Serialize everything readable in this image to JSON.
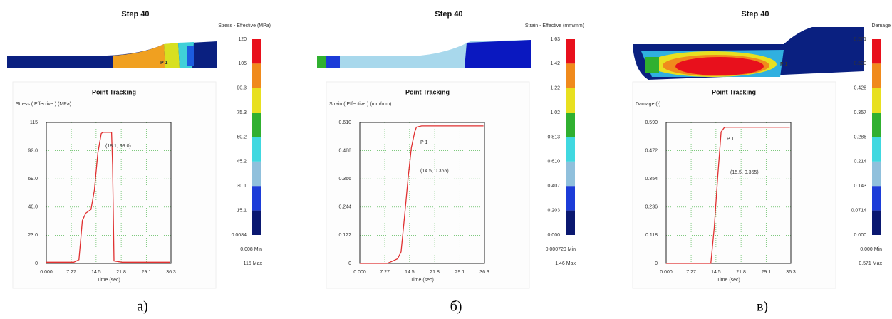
{
  "chart_data": [
    {
      "type": "line",
      "step_label": "Step  40",
      "legend_title": "Stress - Effective (MPa)",
      "node_label": "P 1",
      "colorbar_labels": [
        "120",
        "105",
        "90.3",
        "75.3",
        "60.2",
        "45.2",
        "30.1",
        "15.1",
        "0.0084"
      ],
      "min_label": "0.008  Min",
      "max_label": "115  Max",
      "title": "Point Tracking",
      "y_label": "Stress ( Effective ) (MPa)",
      "x_label": "Time (sec)",
      "annotations": [
        "(18.1, 99.0)"
      ],
      "x": [
        0,
        8,
        9.5,
        10.5,
        11.5,
        13,
        14,
        15,
        16,
        16.5,
        19,
        19.3,
        19.7,
        22,
        30,
        36
      ],
      "values": [
        1,
        1,
        3,
        35,
        41,
        44,
        60,
        90,
        106,
        107,
        107,
        80,
        2,
        1,
        1,
        1
      ],
      "color": "#e03030",
      "xlim": [
        0,
        36.3
      ],
      "xticks": [
        {
          "value": 0,
          "label": "0.000"
        },
        7.27,
        14.5,
        21.8,
        29.1,
        36.3
      ],
      "ylim": [
        0,
        115
      ],
      "yticks": [
        0,
        {
          "value": 23,
          "label": "23.0"
        },
        {
          "value": 46,
          "label": "46.0"
        },
        {
          "value": 69,
          "label": "69.0"
        },
        {
          "value": 92,
          "label": "92.0"
        },
        115
      ],
      "grid": true,
      "caption": "а)"
    },
    {
      "type": "line",
      "step_label": "Step  40",
      "legend_title": "Strain - Effective (mm/mm)",
      "node_label": "P 1",
      "colorbar_labels": [
        "1.63",
        "1.42",
        "1.22",
        "1.02",
        "0.813",
        "0.610",
        "0.407",
        "0.203",
        "0.000"
      ],
      "min_label": "0.000720  Min",
      "max_label": "1.46  Max",
      "title": "Point Tracking",
      "y_label": "Strain ( Effective ) (mm/mm)",
      "x_label": "Time (sec)",
      "annotations": [
        "P 1",
        "(14.5, 0.365)"
      ],
      "x": [
        0,
        8,
        9.5,
        11,
        12,
        13,
        14,
        15,
        16,
        16.5,
        18,
        25,
        30,
        36
      ],
      "values": [
        0,
        0,
        0.01,
        0.02,
        0.05,
        0.2,
        0.36,
        0.5,
        0.57,
        0.59,
        0.595,
        0.595,
        0.595,
        0.595
      ],
      "color": "#e03030",
      "xlim": [
        0,
        36.3
      ],
      "xticks": [
        {
          "value": 0,
          "label": "0.000"
        },
        7.27,
        14.5,
        21.8,
        29.1,
        36.3
      ],
      "ylim": [
        0,
        0.61
      ],
      "yticks": [
        0,
        0.122,
        0.244,
        0.366,
        0.488,
        {
          "value": 0.61,
          "label": "0.610"
        }
      ],
      "grid": true,
      "caption": "б)"
    },
    {
      "type": "line",
      "step_label": "Step  40",
      "legend_title": "Damage",
      "node_label": "P 1",
      "colorbar_labels": [
        "0.571",
        "0.500",
        "0.428",
        "0.357",
        "0.286",
        "0.214",
        "0.143",
        "0.0714",
        "0.000"
      ],
      "min_label": "0.000  Min",
      "max_label": "0.571  Max",
      "title": "Point Tracking",
      "y_label": "Damage (-)",
      "x_label": "Time (sec)",
      "annotations": [
        "P 1",
        "(15.5, 0.355)"
      ],
      "x": [
        0,
        13,
        14,
        15,
        16,
        17,
        36
      ],
      "values": [
        0,
        0,
        0.15,
        0.36,
        0.55,
        0.57,
        0.57
      ],
      "color": "#e03030",
      "xlim": [
        0,
        36.3
      ],
      "xticks": [
        {
          "value": 0,
          "label": "0.000"
        },
        7.27,
        14.5,
        21.8,
        29.1,
        36.3
      ],
      "ylim": [
        0,
        0.59
      ],
      "yticks": [
        0,
        0.118,
        0.236,
        0.354,
        0.472,
        {
          "value": 0.59,
          "label": "0.590"
        }
      ],
      "grid": true,
      "caption": "в)"
    }
  ]
}
